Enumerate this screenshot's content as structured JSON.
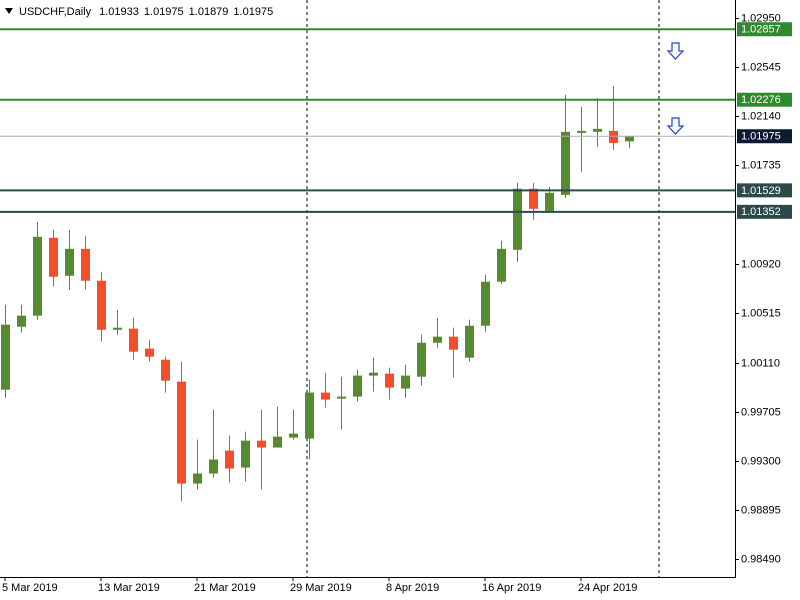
{
  "chart_data": {
    "type": "candlestick",
    "title": "USDCHF,Daily",
    "categories": [
      "5 Mar 2019",
      null,
      null,
      null,
      null,
      null,
      "13 Mar 2019",
      null,
      null,
      null,
      null,
      null,
      "21 Mar 2019",
      null,
      null,
      null,
      null,
      null,
      "29 Mar 2019",
      null,
      null,
      null,
      null,
      null,
      "8 Apr 2019",
      null,
      null,
      null,
      null,
      null,
      "16 Apr 2019",
      null,
      null,
      null,
      null,
      null,
      "24 Apr 2019",
      null,
      null,
      null
    ],
    "open": [
      0.99886,
      1.00405,
      1.00496,
      1.01138,
      1.00825,
      1.01047,
      1.00784,
      1.0038,
      1.00389,
      1.00224,
      1.00133,
      0.99952,
      0.99112,
      0.99195,
      0.99384,
      0.99244,
      0.99466,
      0.99409,
      0.99491,
      0.99483,
      0.99862,
      0.99812,
      0.99829,
      1.00002,
      1.00018,
      0.99895,
      0.99993,
      1.00273,
      1.00323,
      1.0015,
      1.00413,
      1.00776,
      1.01039,
      1.01542,
      1.0136,
      1.01492,
      1.02003,
      1.02011,
      1.02019,
      1.01933
    ],
    "high": [
      1.00586,
      1.00586,
      1.0127,
      1.01204,
      1.01204,
      1.01155,
      1.00858,
      1.00545,
      1.00479,
      1.00298,
      1.00158,
      1.00117,
      0.99475,
      0.99722,
      0.99508,
      0.9954,
      0.99722,
      0.99746,
      0.99722,
      0.99969,
      1.00026,
      0.99993,
      1.00051,
      1.0015,
      1.00068,
      1.00092,
      1.00339,
      1.00479,
      1.00397,
      1.00463,
      1.00833,
      1.01113,
      1.01591,
      1.01591,
      1.01558,
      1.02316,
      1.02217,
      1.02291,
      1.0239,
      1.01975
    ],
    "low": [
      0.9982,
      1.00356,
      1.00463,
      1.00735,
      1.0071,
      1.0071,
      1.00282,
      1.00339,
      1.00133,
      1.00117,
      0.99862,
      0.98964,
      0.99063,
      0.99162,
      0.9912,
      0.99129,
      0.99063,
      0.99409,
      0.99475,
      0.9931,
      0.99738,
      0.99557,
      0.99788,
      0.9987,
      0.99804,
      0.9982,
      0.99919,
      1.00232,
      0.99985,
      1.00117,
      1.00364,
      1.00759,
      1.0094,
      1.01286,
      1.01344,
      1.01467,
      1.01682,
      1.01887,
      1.01863,
      1.01879
    ],
    "close": [
      1.00422,
      1.00496,
      1.01146,
      1.00817,
      1.01047,
      1.00784,
      1.0038,
      1.00397,
      1.00199,
      1.00158,
      0.9996,
      0.99112,
      0.99195,
      0.9931,
      0.99236,
      0.99466,
      0.99409,
      0.99499,
      0.99524,
      0.99862,
      0.99804,
      0.99829,
      1.00002,
      1.00026,
      0.99903,
      1.00002,
      1.00273,
      1.00323,
      1.00216,
      1.00413,
      1.00776,
      1.01047,
      1.01542,
      1.01377,
      1.01509,
      1.02011,
      1.02019,
      1.02036,
      1.0192,
      1.01975
    ],
    "up_color": "#578a2f",
    "down_color": "#f44d2a",
    "ylim": [
      0.98342,
      1.03098
    ],
    "yticks": [
      {
        "value": 1.0295,
        "label": "1.02950"
      },
      1.02545,
      {
        "value": 1.0214,
        "label": "1.02140"
      },
      1.01735,
      {
        "value": 1.0092,
        "label": "1.00920"
      },
      1.00515,
      {
        "value": 1.0011,
        "label": "1.00110"
      },
      0.99705,
      {
        "value": 0.993,
        "label": "0.99300"
      },
      0.98895,
      {
        "value": 0.9849,
        "label": "0.98490"
      }
    ],
    "levels": [
      {
        "value": 1.02857,
        "color": "#2f8a2f"
      },
      {
        "value": 1.02276,
        "color": "#2f8a2f"
      },
      {
        "value": 1.01529,
        "color": "#2c4a4a"
      },
      {
        "value": 1.01352,
        "color": "#2c4a4a"
      }
    ],
    "bid": {
      "value": 1.01975,
      "color": "#a8b0b8",
      "label_color": "#0e1a33"
    }
  }
}
